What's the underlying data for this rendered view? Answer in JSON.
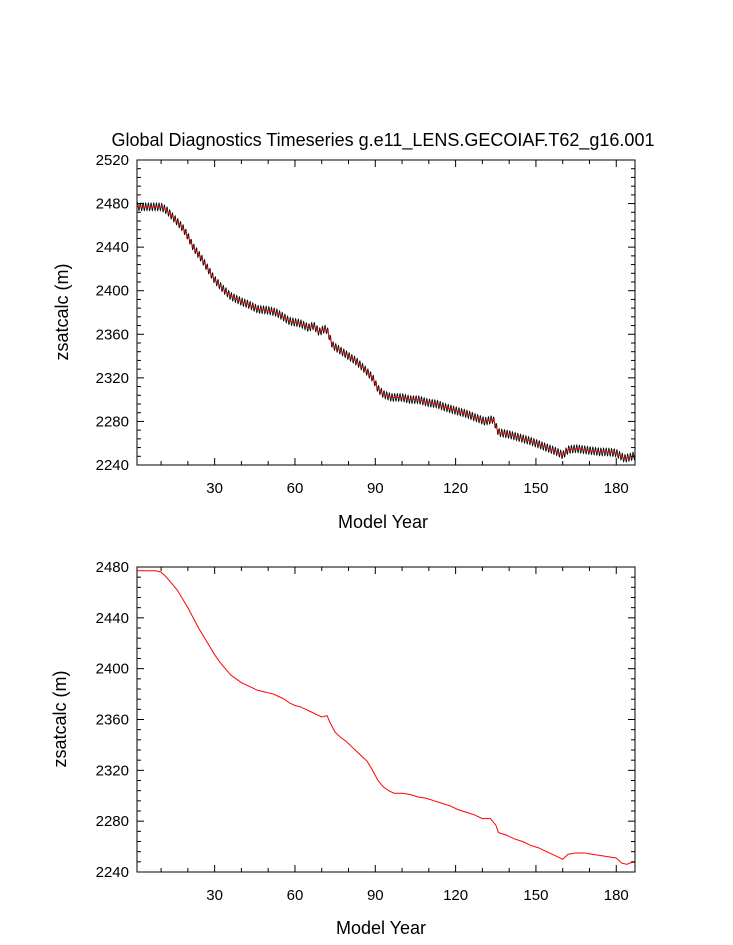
{
  "chart_data": [
    {
      "type": "line",
      "title": "Global Diagnostics Timeseries g.e11_LENS.GECOIAF.T62_g16.001",
      "xlabel": "Model Year",
      "ylabel": "zsatcalc (m)",
      "xlim": [
        1,
        187
      ],
      "ylim": [
        2240,
        2520
      ],
      "xticks": [
        30,
        60,
        90,
        120,
        150,
        180
      ],
      "yticks": [
        2240,
        2280,
        2320,
        2360,
        2400,
        2440,
        2480,
        2520
      ],
      "series": [
        {
          "key": "monthly",
          "color": "#000000",
          "seasonal_amplitude": 3.5,
          "points": [
            [
              1,
              2477
            ],
            [
              5,
              2477
            ],
            [
              10,
              2477
            ],
            [
              12,
              2474
            ],
            [
              15,
              2466
            ],
            [
              18,
              2458
            ],
            [
              20,
              2450
            ],
            [
              22,
              2440
            ],
            [
              25,
              2430
            ],
            [
              28,
              2418
            ],
            [
              30,
              2410
            ],
            [
              33,
              2402
            ],
            [
              36,
              2395
            ],
            [
              40,
              2390
            ],
            [
              43,
              2387
            ],
            [
              46,
              2383
            ],
            [
              50,
              2382
            ],
            [
              53,
              2380
            ],
            [
              55,
              2377
            ],
            [
              58,
              2372
            ],
            [
              62,
              2370
            ],
            [
              65,
              2366
            ],
            [
              67,
              2368
            ],
            [
              69,
              2362
            ],
            [
              71,
              2365
            ],
            [
              72,
              2364
            ],
            [
              74,
              2350
            ],
            [
              77,
              2345
            ],
            [
              80,
              2340
            ],
            [
              83,
              2335
            ],
            [
              86,
              2328
            ],
            [
              89,
              2320
            ],
            [
              91,
              2310
            ],
            [
              93,
              2305
            ],
            [
              96,
              2302
            ],
            [
              100,
              2302
            ],
            [
              103,
              2300
            ],
            [
              106,
              2300
            ],
            [
              110,
              2297
            ],
            [
              113,
              2296
            ],
            [
              116,
              2293
            ],
            [
              120,
              2290
            ],
            [
              124,
              2287
            ],
            [
              128,
              2283
            ],
            [
              131,
              2280
            ],
            [
              134,
              2282
            ],
            [
              136,
              2270
            ],
            [
              140,
              2268
            ],
            [
              144,
              2265
            ],
            [
              148,
              2262
            ],
            [
              152,
              2258
            ],
            [
              155,
              2255
            ],
            [
              158,
              2252
            ],
            [
              160,
              2249
            ],
            [
              162,
              2254
            ],
            [
              165,
              2255
            ],
            [
              168,
              2254
            ],
            [
              171,
              2253
            ],
            [
              174,
              2252
            ],
            [
              177,
              2252
            ],
            [
              180,
              2251
            ],
            [
              183,
              2246
            ],
            [
              185,
              2247
            ],
            [
              187,
              2249
            ]
          ]
        },
        {
          "key": "annual",
          "color": "#ff0000",
          "points": [
            [
              1,
              2477
            ],
            [
              5,
              2477
            ],
            [
              10,
              2477
            ],
            [
              12,
              2474
            ],
            [
              15,
              2466
            ],
            [
              18,
              2458
            ],
            [
              20,
              2450
            ],
            [
              22,
              2440
            ],
            [
              25,
              2430
            ],
            [
              28,
              2418
            ],
            [
              30,
              2410
            ],
            [
              33,
              2402
            ],
            [
              36,
              2395
            ],
            [
              40,
              2390
            ],
            [
              43,
              2387
            ],
            [
              46,
              2383
            ],
            [
              50,
              2382
            ],
            [
              53,
              2380
            ],
            [
              55,
              2377
            ],
            [
              58,
              2372
            ],
            [
              62,
              2370
            ],
            [
              65,
              2366
            ],
            [
              67,
              2368
            ],
            [
              69,
              2362
            ],
            [
              71,
              2365
            ],
            [
              72,
              2364
            ],
            [
              74,
              2350
            ],
            [
              77,
              2345
            ],
            [
              80,
              2340
            ],
            [
              83,
              2335
            ],
            [
              86,
              2328
            ],
            [
              89,
              2320
            ],
            [
              91,
              2310
            ],
            [
              93,
              2305
            ],
            [
              96,
              2302
            ],
            [
              100,
              2302
            ],
            [
              103,
              2300
            ],
            [
              106,
              2300
            ],
            [
              110,
              2297
            ],
            [
              113,
              2296
            ],
            [
              116,
              2293
            ],
            [
              120,
              2290
            ],
            [
              124,
              2287
            ],
            [
              128,
              2283
            ],
            [
              131,
              2280
            ],
            [
              134,
              2282
            ],
            [
              136,
              2270
            ],
            [
              140,
              2268
            ],
            [
              144,
              2265
            ],
            [
              148,
              2262
            ],
            [
              152,
              2258
            ],
            [
              155,
              2255
            ],
            [
              158,
              2252
            ],
            [
              160,
              2249
            ],
            [
              162,
              2254
            ],
            [
              165,
              2255
            ],
            [
              168,
              2254
            ],
            [
              171,
              2253
            ],
            [
              174,
              2252
            ],
            [
              177,
              2252
            ],
            [
              180,
              2251
            ],
            [
              183,
              2246
            ],
            [
              185,
              2247
            ],
            [
              187,
              2249
            ]
          ]
        }
      ]
    },
    {
      "type": "line",
      "title": "",
      "xlabel": "Model Year",
      "ylabel": "zsatcalc (m)",
      "xlim": [
        1,
        187
      ],
      "ylim": [
        2240,
        2480
      ],
      "xticks": [
        30,
        60,
        90,
        120,
        150,
        180
      ],
      "yticks": [
        2240,
        2280,
        2320,
        2360,
        2400,
        2440,
        2480
      ],
      "series": [
        {
          "key": "annual",
          "color": "#ff0000",
          "points": [
            [
              1,
              2477
            ],
            [
              5,
              2477
            ],
            [
              8,
              2477
            ],
            [
              10,
              2476
            ],
            [
              12,
              2472
            ],
            [
              14,
              2467
            ],
            [
              16,
              2462
            ],
            [
              18,
              2455
            ],
            [
              20,
              2448
            ],
            [
              22,
              2440
            ],
            [
              24,
              2432
            ],
            [
              26,
              2425
            ],
            [
              28,
              2418
            ],
            [
              30,
              2411
            ],
            [
              32,
              2405
            ],
            [
              34,
              2400
            ],
            [
              36,
              2395
            ],
            [
              38,
              2392
            ],
            [
              40,
              2389
            ],
            [
              42,
              2387
            ],
            [
              44,
              2385
            ],
            [
              46,
              2383
            ],
            [
              48,
              2382
            ],
            [
              50,
              2381
            ],
            [
              52,
              2380
            ],
            [
              54,
              2378
            ],
            [
              56,
              2376
            ],
            [
              58,
              2373
            ],
            [
              60,
              2371
            ],
            [
              62,
              2370
            ],
            [
              64,
              2368
            ],
            [
              66,
              2366
            ],
            [
              68,
              2364
            ],
            [
              70,
              2362
            ],
            [
              72,
              2363
            ],
            [
              73,
              2358
            ],
            [
              75,
              2350
            ],
            [
              77,
              2346
            ],
            [
              79,
              2343
            ],
            [
              81,
              2339
            ],
            [
              83,
              2335
            ],
            [
              85,
              2331
            ],
            [
              87,
              2327
            ],
            [
              89,
              2320
            ],
            [
              91,
              2312
            ],
            [
              93,
              2307
            ],
            [
              95,
              2304
            ],
            [
              97,
              2302
            ],
            [
              100,
              2302
            ],
            [
              103,
              2301
            ],
            [
              106,
              2299
            ],
            [
              109,
              2298
            ],
            [
              112,
              2296
            ],
            [
              115,
              2294
            ],
            [
              118,
              2292
            ],
            [
              121,
              2289
            ],
            [
              124,
              2287
            ],
            [
              127,
              2285
            ],
            [
              130,
              2282
            ],
            [
              133,
              2282
            ],
            [
              135,
              2277
            ],
            [
              136,
              2271
            ],
            [
              139,
              2269
            ],
            [
              142,
              2266
            ],
            [
              145,
              2264
            ],
            [
              148,
              2261
            ],
            [
              151,
              2259
            ],
            [
              154,
              2256
            ],
            [
              157,
              2253
            ],
            [
              160,
              2250
            ],
            [
              162,
              2254
            ],
            [
              165,
              2255
            ],
            [
              168,
              2255
            ],
            [
              171,
              2254
            ],
            [
              174,
              2253
            ],
            [
              177,
              2252
            ],
            [
              180,
              2251
            ],
            [
              182,
              2247
            ],
            [
              184,
              2246
            ],
            [
              185,
              2247
            ],
            [
              187,
              2248
            ]
          ]
        }
      ]
    }
  ]
}
